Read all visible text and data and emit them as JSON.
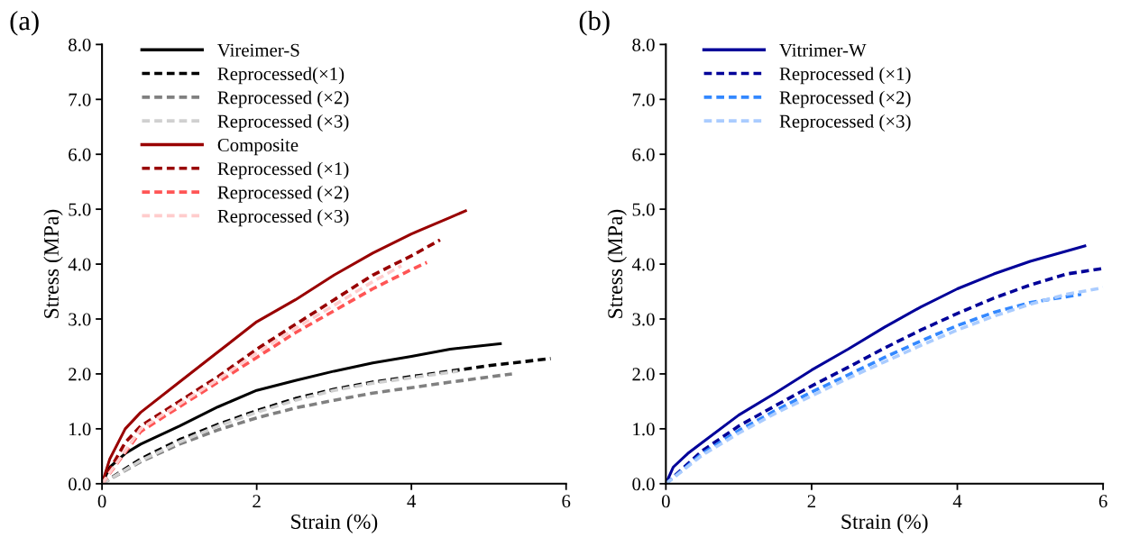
{
  "chart_data": [
    {
      "type": "line",
      "title": "(a)",
      "xlabel": "Strain (%)",
      "ylabel": "Stress (MPa)",
      "xlim": [
        0,
        6
      ],
      "xticks": [
        0,
        2,
        4,
        6
      ],
      "ylim": [
        0,
        8
      ],
      "yticks": [
        {
          "value": 0,
          "label": "0.0"
        },
        {
          "value": 1,
          "label": "1.0"
        },
        {
          "value": 2,
          "label": "2.0"
        },
        {
          "value": 3,
          "label": "3.0"
        },
        {
          "value": 4,
          "label": "4.0"
        },
        {
          "value": 5,
          "label": "5.0"
        },
        {
          "value": 6,
          "label": "6.0"
        },
        {
          "value": 7,
          "label": "7.0"
        },
        {
          "value": 8,
          "label": "8.0"
        }
      ],
      "grid": false,
      "legend": "top left",
      "marker": "none",
      "series": [
        {
          "name": "Vireimer-S",
          "color": "#000000",
          "line_style": "solid",
          "x": [
            0,
            0.1,
            0.3,
            0.5,
            1,
            1.5,
            2,
            2.5,
            3,
            3.5,
            4,
            4.5,
            5.15
          ],
          "values": [
            0,
            0.3,
            0.55,
            0.72,
            1.05,
            1.4,
            1.7,
            1.88,
            2.05,
            2.2,
            2.32,
            2.45,
            2.55
          ]
        },
        {
          "name": "Reprocessed(×1)",
          "color": "#000000",
          "line_style": "dashed",
          "x": [
            0,
            0.5,
            1,
            1.5,
            2,
            2.5,
            3,
            3.5,
            4,
            4.5,
            5,
            5.8
          ],
          "values": [
            0,
            0.45,
            0.8,
            1.08,
            1.33,
            1.55,
            1.72,
            1.85,
            1.95,
            2.05,
            2.15,
            2.28
          ]
        },
        {
          "name": "Reprocessed (×2)",
          "color": "#808080",
          "line_style": "dashed",
          "x": [
            0,
            0.5,
            1,
            1.5,
            2,
            2.5,
            3,
            3.5,
            4,
            4.5,
            5.3
          ],
          "values": [
            0,
            0.4,
            0.72,
            0.98,
            1.2,
            1.38,
            1.52,
            1.65,
            1.75,
            1.85,
            2.0
          ]
        },
        {
          "name": "Reprocessed (×3)",
          "color": "#d0d0d0",
          "line_style": "dashed",
          "x": [
            0,
            0.5,
            1,
            1.5,
            2,
            2.5,
            3,
            3.5,
            4,
            4.6
          ],
          "values": [
            0,
            0.42,
            0.76,
            1.05,
            1.3,
            1.52,
            1.7,
            1.83,
            1.93,
            2.05
          ]
        },
        {
          "name": "Composite",
          "color": "#990000",
          "line_style": "solid",
          "x": [
            0,
            0.1,
            0.3,
            0.5,
            1,
            1.5,
            2,
            2.5,
            3,
            3.5,
            4,
            4.5,
            4.7
          ],
          "values": [
            0,
            0.45,
            1.0,
            1.3,
            1.85,
            2.4,
            2.95,
            3.35,
            3.8,
            4.2,
            4.55,
            4.85,
            4.97
          ]
        },
        {
          "name": "Reprocessed (×1)",
          "color": "#990000",
          "line_style": "dashed",
          "x": [
            0,
            0.3,
            0.5,
            1,
            1.5,
            2,
            2.5,
            3,
            3.5,
            4,
            4.37
          ],
          "values": [
            0,
            0.75,
            1.05,
            1.5,
            1.95,
            2.45,
            2.9,
            3.35,
            3.8,
            4.15,
            4.44
          ]
        },
        {
          "name": "Reprocessed (×2)",
          "color": "#ff5555",
          "line_style": "dashed",
          "x": [
            0,
            0.5,
            1,
            1.5,
            2,
            2.5,
            3,
            3.5,
            4,
            4.2
          ],
          "values": [
            0,
            0.95,
            1.4,
            1.85,
            2.3,
            2.75,
            3.15,
            3.55,
            3.9,
            4.03
          ]
        },
        {
          "name": "Reprocessed (×3)",
          "color": "#ffcccc",
          "line_style": "dashed",
          "x": [
            0,
            0.5,
            1,
            1.5,
            2,
            2.5,
            3,
            3.5,
            3.87
          ],
          "values": [
            0,
            1.0,
            1.45,
            1.9,
            2.38,
            2.83,
            3.25,
            3.68,
            3.97
          ]
        }
      ]
    },
    {
      "type": "line",
      "title": "(b)",
      "xlabel": "Strain (%)",
      "ylabel": "Stress (MPa)",
      "xlim": [
        0,
        6
      ],
      "xticks": [
        0,
        2,
        4,
        6
      ],
      "ylim": [
        0,
        8
      ],
      "yticks": [
        {
          "value": 0,
          "label": "0.0"
        },
        {
          "value": 1,
          "label": "1.0"
        },
        {
          "value": 2,
          "label": "2.0"
        },
        {
          "value": 3,
          "label": "3.0"
        },
        {
          "value": 4,
          "label": "4.0"
        },
        {
          "value": 5,
          "label": "5.0"
        },
        {
          "value": 6,
          "label": "6.0"
        },
        {
          "value": 7,
          "label": "7.0"
        },
        {
          "value": 8,
          "label": "8.0"
        }
      ],
      "grid": false,
      "legend": "top left",
      "marker": "none",
      "series": [
        {
          "name": "Vitrimer-W",
          "color": "#000099",
          "line_style": "solid",
          "x": [
            0,
            0.1,
            0.3,
            0.5,
            1,
            1.5,
            2,
            2.5,
            3,
            3.5,
            4,
            4.5,
            5,
            5.75
          ],
          "values": [
            0,
            0.3,
            0.55,
            0.75,
            1.25,
            1.65,
            2.07,
            2.45,
            2.85,
            3.22,
            3.55,
            3.82,
            4.05,
            4.33
          ]
        },
        {
          "name": "Reprocessed (×1)",
          "color": "#000099",
          "line_style": "dashed",
          "x": [
            0,
            0.5,
            1,
            1.5,
            2,
            2.5,
            3,
            3.5,
            4,
            4.5,
            5,
            5.5,
            6
          ],
          "values": [
            0,
            0.6,
            1.05,
            1.42,
            1.78,
            2.12,
            2.47,
            2.8,
            3.1,
            3.38,
            3.62,
            3.82,
            3.92
          ]
        },
        {
          "name": "Reprocessed (×2)",
          "color": "#3388ff",
          "line_style": "dashed",
          "x": [
            0,
            0.5,
            1,
            1.5,
            2,
            2.5,
            3,
            3.5,
            4,
            4.5,
            5,
            5.7
          ],
          "values": [
            0,
            0.55,
            0.97,
            1.33,
            1.67,
            1.98,
            2.3,
            2.6,
            2.88,
            3.12,
            3.3,
            3.45
          ]
        },
        {
          "name": "Reprocessed (×3)",
          "color": "#aaccff",
          "line_style": "dashed",
          "x": [
            0,
            0.5,
            1,
            1.5,
            2,
            2.5,
            3,
            3.5,
            4,
            4.5,
            5,
            5.5,
            6
          ],
          "values": [
            0,
            0.52,
            0.92,
            1.28,
            1.6,
            1.92,
            2.22,
            2.52,
            2.8,
            3.05,
            3.27,
            3.45,
            3.57
          ]
        }
      ]
    }
  ]
}
